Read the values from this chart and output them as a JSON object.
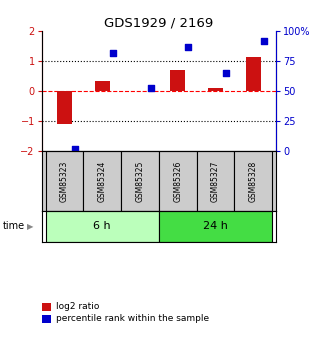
{
  "title": "GDS1929 / 2169",
  "samples": [
    "GSM85323",
    "GSM85324",
    "GSM85325",
    "GSM85326",
    "GSM85327",
    "GSM85328"
  ],
  "log2_ratio": [
    -1.1,
    0.35,
    0.0,
    0.7,
    0.1,
    1.15
  ],
  "percentile_rank": [
    2.0,
    82.0,
    53.0,
    87.0,
    65.0,
    92.0
  ],
  "groups": [
    {
      "label": "6 h",
      "indices": [
        0,
        1,
        2
      ],
      "color": "#bbffbb"
    },
    {
      "label": "24 h",
      "indices": [
        3,
        4,
        5
      ],
      "color": "#44dd44"
    }
  ],
  "bar_color": "#cc1111",
  "dot_color": "#0000cc",
  "label_bg": "#cccccc",
  "ylim_left": [
    -2,
    2
  ],
  "ylim_right": [
    0,
    100
  ],
  "left_ticks": [
    -2,
    -1,
    0,
    1,
    2
  ],
  "right_ticks": [
    0,
    25,
    50,
    75,
    100
  ],
  "right_tick_labels": [
    "0",
    "25",
    "50",
    "75",
    "100%"
  ],
  "hlines": [
    -1,
    0,
    1
  ],
  "hline_styles": [
    "dotted",
    "dashed",
    "dotted"
  ],
  "hline_colors": [
    "black",
    "red",
    "black"
  ],
  "background_color": "#ffffff",
  "left_tick_color": "#cc1111",
  "right_tick_color": "#0000cc",
  "time_label": "time",
  "legend_bar_label": "log2 ratio",
  "legend_dot_label": "percentile rank within the sample"
}
